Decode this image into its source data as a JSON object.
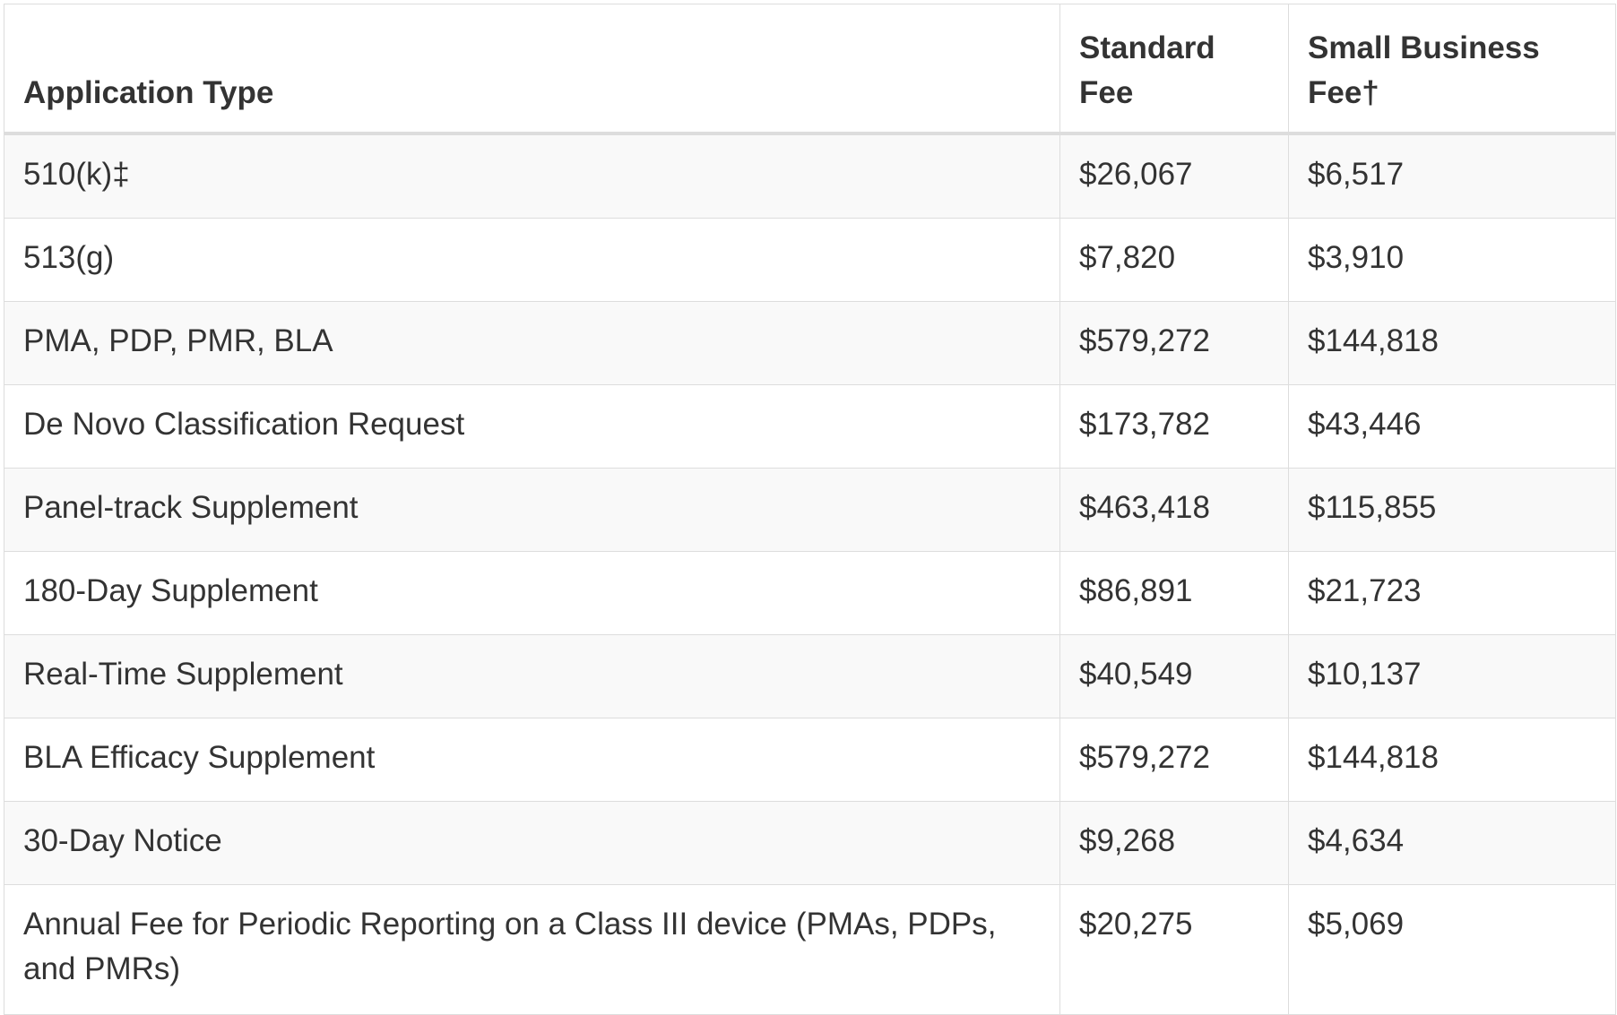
{
  "table": {
    "headers": {
      "application_type": "Application Type",
      "standard_fee": "Standard Fee",
      "small_business_fee": "Small Business Fee†"
    },
    "rows": [
      {
        "type": "510(k)‡",
        "standard": "$26,067",
        "small": "$6,517"
      },
      {
        "type": "513(g)",
        "standard": "$7,820",
        "small": "$3,910"
      },
      {
        "type": "PMA, PDP, PMR, BLA",
        "standard": "$579,272",
        "small": "$144,818"
      },
      {
        "type": "De Novo Classification Request",
        "standard": "$173,782",
        "small": "$43,446"
      },
      {
        "type": "Panel-track Supplement",
        "standard": "$463,418",
        "small": "$115,855"
      },
      {
        "type": "180-Day Supplement",
        "standard": "$86,891",
        "small": "$21,723"
      },
      {
        "type": "Real-Time Supplement",
        "standard": "$40,549",
        "small": "$10,137"
      },
      {
        "type": "BLA Efficacy Supplement",
        "standard": "$579,272",
        "small": "$144,818"
      },
      {
        "type": "30-Day Notice",
        "standard": "$9,268",
        "small": "$4,634"
      },
      {
        "type": "Annual Fee for Periodic Reporting on a Class III device (PMAs, PDPs, and PMRs)",
        "standard": "$20,275",
        "small": "$5,069"
      }
    ]
  }
}
